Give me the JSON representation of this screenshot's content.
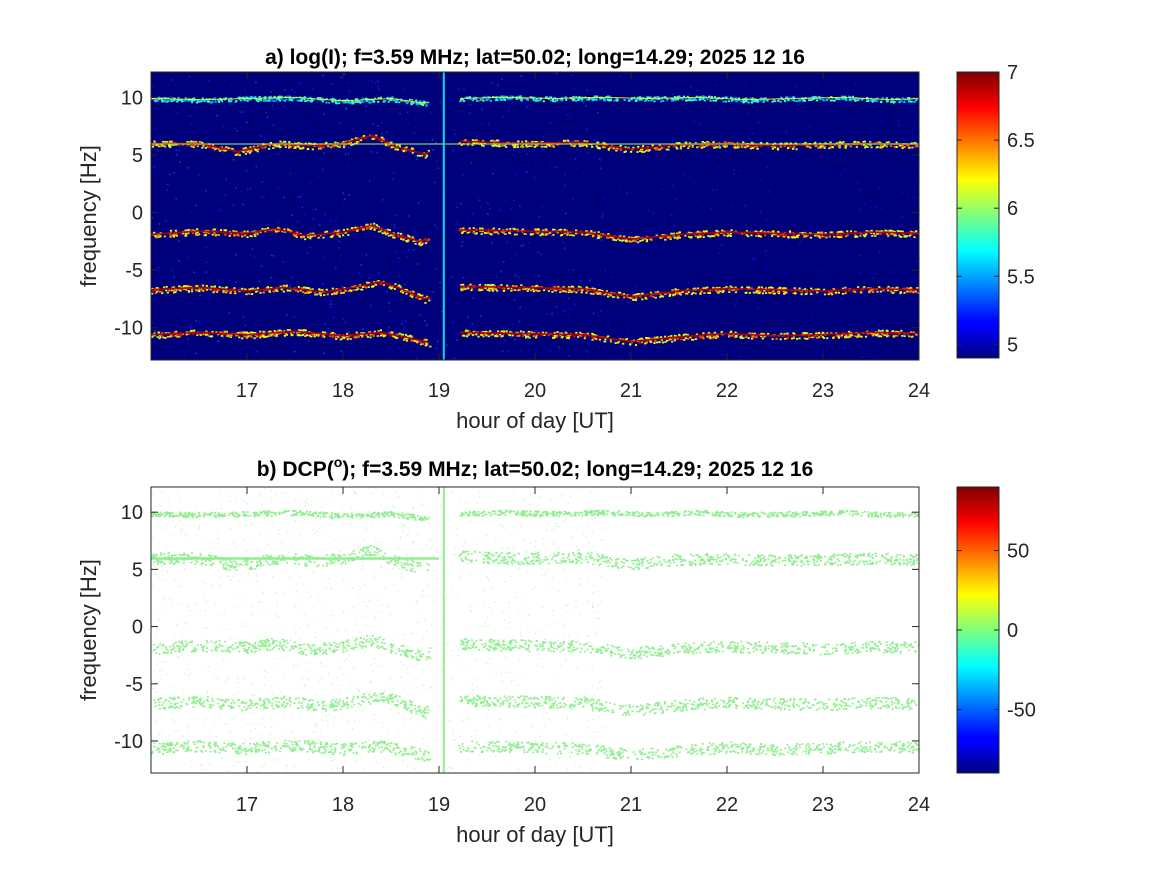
{
  "chart_data": [
    {
      "type": "heatmap",
      "title": "a) log(I); f=3.59 MHz;  lat=50.02; long=14.29; 2025 12 16",
      "xlabel": "hour of day [UT]",
      "ylabel": "frequency [Hz]",
      "xlim": [
        16,
        24
      ],
      "ylim": [
        -12.8,
        12.2
      ],
      "xticks": [
        17,
        18,
        19,
        20,
        21,
        22,
        23,
        24
      ],
      "yticks": [
        10,
        5,
        0,
        -5,
        -10
      ],
      "background_color": "#00007a",
      "colormap": "jet",
      "colorbar": {
        "range": [
          4.9,
          7.0
        ],
        "ticks": [
          "7",
          "6.5",
          "6",
          "5.5",
          "5"
        ],
        "tick_values": [
          7,
          6.5,
          6,
          5.5,
          5
        ]
      },
      "line_value_strong": 6.9,
      "line_value_medium": 6.2,
      "line_value_weak": 5.4,
      "gap_hours": [
        18.9,
        19.2
      ],
      "vertical_line_hour": 19.05,
      "bands": [
        {
          "label": "10",
          "x": [
            16.0,
            16.5,
            17.0,
            17.5,
            18.0,
            18.5,
            18.85,
            19.2,
            19.7,
            20.2,
            20.7,
            21.2,
            21.7,
            22.2,
            22.7,
            23.2,
            23.7,
            24.0
          ],
          "y": [
            9.9,
            9.8,
            9.9,
            10.0,
            9.7,
            9.9,
            9.5,
            9.9,
            10.0,
            9.9,
            10.0,
            9.9,
            10.0,
            9.8,
            9.9,
            10.0,
            9.8,
            9.9
          ]
        },
        {
          "label": "6",
          "x": [
            16.0,
            16.5,
            16.9,
            17.3,
            17.7,
            18.0,
            18.3,
            18.55,
            18.85,
            19.2,
            19.8,
            20.5,
            21.0,
            21.5,
            22.0,
            22.5,
            23.0,
            23.5,
            24.0
          ],
          "y": [
            6.0,
            6.0,
            5.3,
            6.0,
            5.8,
            6.0,
            6.7,
            5.7,
            5.1,
            6.2,
            6.0,
            6.1,
            5.5,
            5.9,
            6.0,
            5.8,
            5.9,
            6.0,
            5.9
          ]
        },
        {
          "label": "-2",
          "x": [
            16.0,
            16.5,
            17.0,
            17.3,
            17.6,
            18.0,
            18.3,
            18.5,
            18.8,
            19.2,
            19.8,
            20.5,
            21.0,
            21.5,
            22.0,
            22.5,
            23.0,
            23.5,
            24.0
          ],
          "y": [
            -1.9,
            -1.6,
            -1.8,
            -1.4,
            -2.0,
            -1.7,
            -1.1,
            -1.8,
            -2.5,
            -1.5,
            -1.6,
            -1.7,
            -2.3,
            -1.9,
            -1.7,
            -1.8,
            -1.9,
            -1.7,
            -1.8
          ]
        },
        {
          "label": "-6.5",
          "x": [
            16.0,
            16.5,
            17.0,
            17.4,
            17.8,
            18.1,
            18.4,
            18.6,
            18.85,
            19.2,
            19.8,
            20.5,
            21.0,
            21.5,
            22.0,
            22.5,
            23.0,
            23.5,
            24.0
          ],
          "y": [
            -6.7,
            -6.5,
            -6.8,
            -6.5,
            -6.9,
            -6.5,
            -6.0,
            -6.6,
            -7.5,
            -6.4,
            -6.5,
            -6.6,
            -7.3,
            -6.8,
            -6.6,
            -6.7,
            -6.8,
            -6.6,
            -6.7
          ]
        },
        {
          "label": "-10.5",
          "x": [
            16.0,
            16.5,
            17.0,
            17.5,
            18.0,
            18.4,
            18.7,
            18.9,
            19.2,
            19.8,
            20.5,
            21.0,
            21.5,
            22.0,
            22.5,
            23.0,
            23.5,
            24.0
          ],
          "y": [
            -10.6,
            -10.4,
            -10.6,
            -10.3,
            -10.7,
            -10.4,
            -10.9,
            -11.3,
            -10.4,
            -10.5,
            -10.6,
            -11.2,
            -10.8,
            -10.5,
            -10.7,
            -10.6,
            -10.4,
            -10.5
          ]
        }
      ]
    },
    {
      "type": "heatmap",
      "title": "b) DCP(",
      "title_super": "o",
      "title_after": "); f=3.59 MHz;  lat=50.02; long=14.29; 2025 12 16",
      "xlabel": "hour of day [UT]",
      "ylabel": "frequency [Hz]",
      "xlim": [
        16,
        24
      ],
      "ylim": [
        -12.8,
        12.2
      ],
      "xticks": [
        17,
        18,
        19,
        20,
        21,
        22,
        23,
        24
      ],
      "yticks": [
        10,
        5,
        0,
        -5,
        -10
      ],
      "background_color": "#ffffff",
      "points_color": "#90ee90",
      "colormap": "jet",
      "colorbar": {
        "range": [
          -90,
          90
        ],
        "ticks": [
          "50",
          "0",
          "-50"
        ],
        "tick_values": [
          50,
          0,
          -50
        ]
      },
      "dcp_value": 5
    }
  ],
  "x_tick_labels": [
    "17",
    "18",
    "19",
    "20",
    "21",
    "22",
    "23",
    "24"
  ],
  "y_tick_labels": [
    "10",
    "5",
    "0",
    "-5",
    "-10"
  ]
}
